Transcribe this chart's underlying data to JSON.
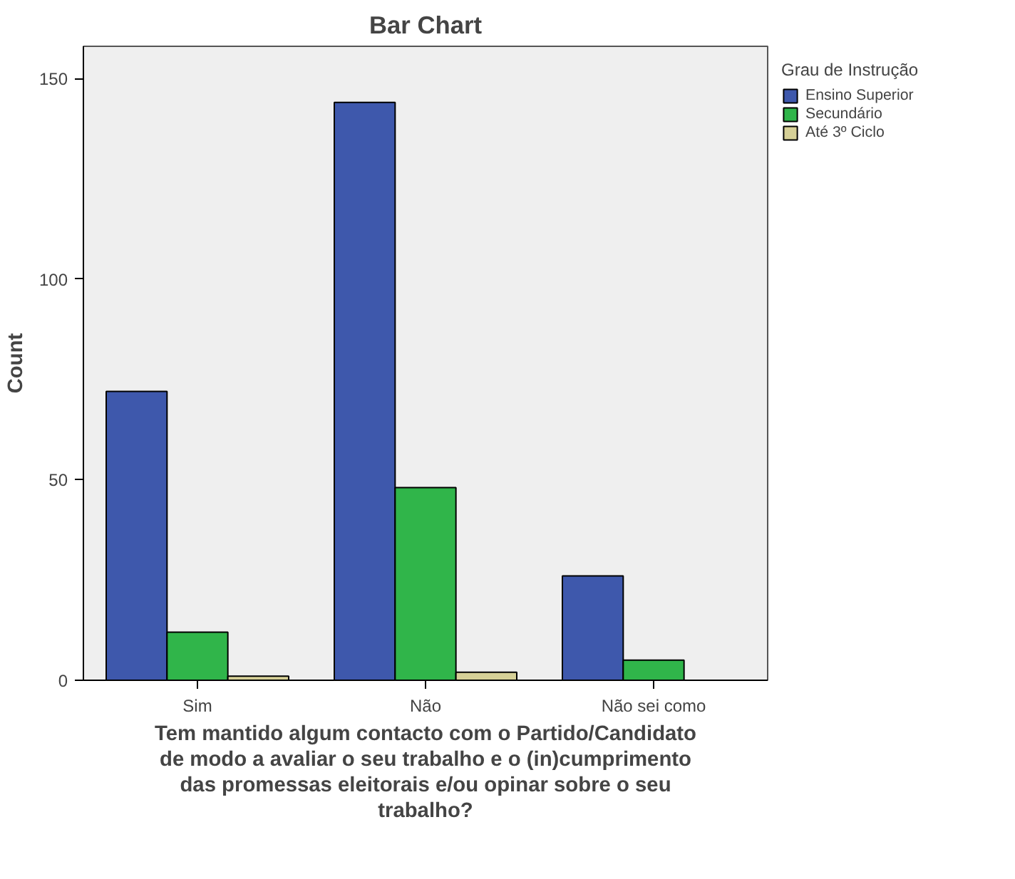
{
  "chart_data": {
    "type": "bar",
    "title": "Bar Chart",
    "xlabel": "Tem mantido algum contacto com o Partido/Candidato de modo a avaliar o seu trabalho e o (in)cumprimento das promessas eleitorais e/ou opinar sobre o seu trabalho?",
    "ylabel": "Count",
    "legend_title": "Grau de Instrução",
    "categories": [
      "Sim",
      "Não",
      "Não sei como"
    ],
    "series": [
      {
        "name": "Ensino Superior",
        "color": "#3e58ac",
        "values": [
          72,
          144,
          26
        ]
      },
      {
        "name": "Secundário",
        "color": "#30b54a",
        "values": [
          12,
          48,
          5
        ]
      },
      {
        "name": "Até 3º Ciclo",
        "color": "#d6d097",
        "values": [
          1,
          2,
          0
        ]
      }
    ],
    "ylim": [
      0,
      158
    ],
    "yticks": [
      0,
      50,
      100,
      150
    ],
    "grid": false,
    "legend": "right"
  }
}
